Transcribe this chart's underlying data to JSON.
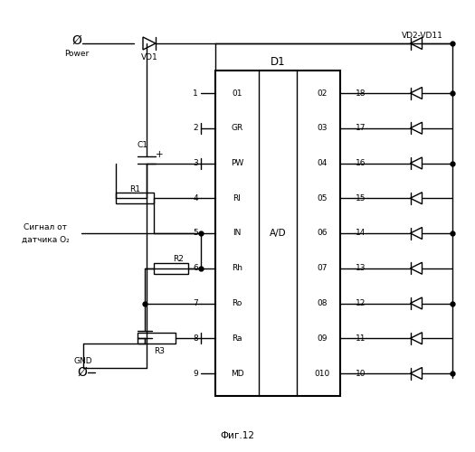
{
  "title": "Фиг.12",
  "background_color": "#ffffff",
  "fig_width": 5.25,
  "fig_height": 5.0,
  "dpi": 100,
  "ic_left_labels": [
    "01",
    "GR",
    "PW",
    "RI",
    "IN",
    "Rh",
    "Ro",
    "Ra",
    "MD"
  ],
  "ic_right_labels": [
    "02",
    "03",
    "04",
    "05",
    "06",
    "07",
    "08",
    "09",
    "010"
  ],
  "left_pin_nums": [
    "1",
    "2",
    "3",
    "4",
    "5",
    "6",
    "7",
    "8",
    "9"
  ],
  "right_pin_nums": [
    "18",
    "17",
    "16",
    "15",
    "14",
    "13",
    "12",
    "11",
    "10"
  ]
}
